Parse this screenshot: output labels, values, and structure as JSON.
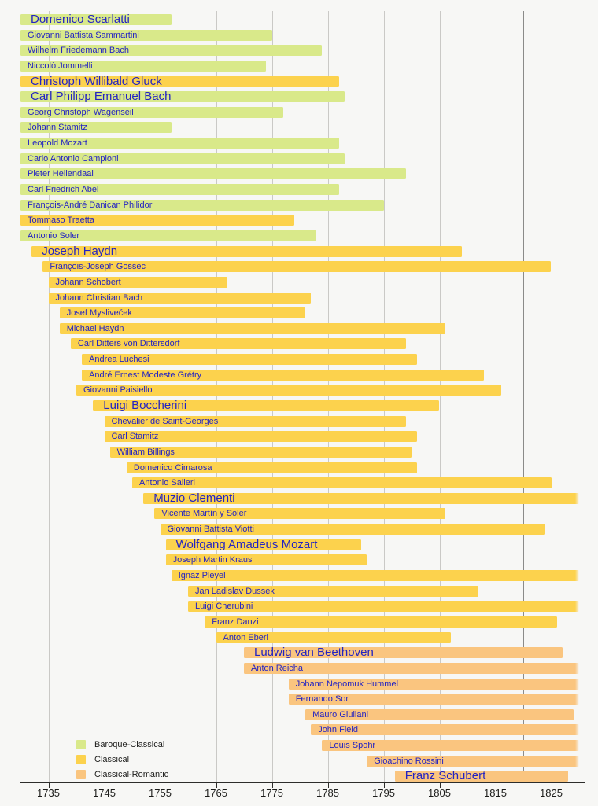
{
  "chart_data": {
    "type": "bar",
    "variant": "timeline-lifespans",
    "title": "",
    "x_axis": {
      "min": 1730,
      "max": 1830,
      "grid": true,
      "tick_years": [
        1735,
        1745,
        1755,
        1765,
        1775,
        1785,
        1795,
        1805,
        1815,
        1825
      ],
      "tick_labels": [
        "1735",
        "1745",
        "1755",
        "1765",
        "1775",
        "1785",
        "1795",
        "1805",
        "1815",
        "1825"
      ],
      "era_boundary_year": 1820
    },
    "legend": {
      "position": "bottom-left",
      "items": [
        {
          "label": "Baroque-Classical",
          "era": "baroque-classical",
          "color": "#d9e98a"
        },
        {
          "label": "Classical",
          "era": "classical",
          "color": "#fcd24d"
        },
        {
          "label": "Classical-Romantic",
          "era": "classical-romantic",
          "color": "#fac57f"
        }
      ]
    },
    "composers": [
      {
        "name": "Domenico Scarlatti",
        "start": 1730,
        "end": 1757,
        "era": "baroque-classical",
        "big": true
      },
      {
        "name": "Giovanni Battista Sammartini",
        "start": 1730,
        "end": 1775,
        "era": "baroque-classical",
        "big": false
      },
      {
        "name": "Wilhelm Friedemann Bach",
        "start": 1730,
        "end": 1784,
        "era": "baroque-classical",
        "big": false
      },
      {
        "name": "Niccolò Jommelli",
        "start": 1730,
        "end": 1774,
        "era": "baroque-classical",
        "big": false
      },
      {
        "name": "Christoph Willibald Gluck",
        "start": 1730,
        "end": 1787,
        "era": "classical",
        "big": true
      },
      {
        "name": "Carl Philipp Emanuel Bach",
        "start": 1730,
        "end": 1788,
        "era": "baroque-classical",
        "big": true
      },
      {
        "name": "Georg Christoph Wagenseil",
        "start": 1730,
        "end": 1777,
        "era": "baroque-classical",
        "big": false
      },
      {
        "name": "Johann Stamitz",
        "start": 1730,
        "end": 1757,
        "era": "baroque-classical",
        "big": false
      },
      {
        "name": "Leopold Mozart",
        "start": 1730,
        "end": 1787,
        "era": "baroque-classical",
        "big": false
      },
      {
        "name": "Carlo Antonio Campioni",
        "start": 1730,
        "end": 1788,
        "era": "baroque-classical",
        "big": false
      },
      {
        "name": "Pieter Hellendaal",
        "start": 1730,
        "end": 1799,
        "era": "baroque-classical",
        "big": false
      },
      {
        "name": "Carl Friedrich Abel",
        "start": 1730,
        "end": 1787,
        "era": "baroque-classical",
        "big": false
      },
      {
        "name": "François-André Danican Philidor",
        "start": 1730,
        "end": 1795,
        "era": "baroque-classical",
        "big": false
      },
      {
        "name": "Tommaso Traetta",
        "start": 1730,
        "end": 1779,
        "era": "classical",
        "big": false
      },
      {
        "name": "Antonio Soler",
        "start": 1730,
        "end": 1783,
        "era": "baroque-classical",
        "big": false
      },
      {
        "name": "Joseph Haydn",
        "start": 1732,
        "end": 1809,
        "era": "classical",
        "big": true
      },
      {
        "name": "François-Joseph Gossec",
        "start": 1734,
        "end": 1825,
        "era": "classical",
        "big": false
      },
      {
        "name": "Johann Schobert",
        "start": 1735,
        "end": 1767,
        "era": "classical",
        "big": false
      },
      {
        "name": "Johann Christian Bach",
        "start": 1735,
        "end": 1782,
        "era": "classical",
        "big": false
      },
      {
        "name": "Josef Mysliveček",
        "start": 1737,
        "end": 1781,
        "era": "classical",
        "big": false
      },
      {
        "name": "Michael Haydn",
        "start": 1737,
        "end": 1806,
        "era": "classical",
        "big": false
      },
      {
        "name": "Carl Ditters von Dittersdorf",
        "start": 1739,
        "end": 1799,
        "era": "classical",
        "big": false
      },
      {
        "name": "Andrea Luchesi",
        "start": 1741,
        "end": 1801,
        "era": "classical",
        "big": false
      },
      {
        "name": "André Ernest Modeste Grétry",
        "start": 1741,
        "end": 1813,
        "era": "classical",
        "big": false
      },
      {
        "name": "Giovanni Paisiello",
        "start": 1740,
        "end": 1816,
        "era": "classical",
        "big": false
      },
      {
        "name": "Luigi Boccherini",
        "start": 1743,
        "end": 1805,
        "era": "classical",
        "big": true
      },
      {
        "name": "Chevalier de Saint-Georges",
        "start": 1745,
        "end": 1799,
        "era": "classical",
        "big": false
      },
      {
        "name": "Carl Stamitz",
        "start": 1745,
        "end": 1801,
        "era": "classical",
        "big": false
      },
      {
        "name": "William Billings",
        "start": 1746,
        "end": 1800,
        "era": "classical",
        "big": false
      },
      {
        "name": "Domenico Cimarosa",
        "start": 1749,
        "end": 1801,
        "era": "classical",
        "big": false
      },
      {
        "name": "Antonio Salieri",
        "start": 1750,
        "end": 1825,
        "era": "classical",
        "big": false
      },
      {
        "name": "Muzio Clementi",
        "start": 1752,
        "end": 1830,
        "era": "classical",
        "big": true
      },
      {
        "name": "Vicente Martín y Soler",
        "start": 1754,
        "end": 1806,
        "era": "classical",
        "big": false
      },
      {
        "name": "Giovanni Battista Viotti",
        "start": 1755,
        "end": 1824,
        "era": "classical",
        "big": false
      },
      {
        "name": "Wolfgang Amadeus Mozart",
        "start": 1756,
        "end": 1791,
        "era": "classical",
        "big": true
      },
      {
        "name": "Joseph Martin Kraus",
        "start": 1756,
        "end": 1792,
        "era": "classical",
        "big": false
      },
      {
        "name": "Ignaz Pleyel",
        "start": 1757,
        "end": 1830,
        "era": "classical",
        "big": false
      },
      {
        "name": "Jan Ladislav Dussek",
        "start": 1760,
        "end": 1812,
        "era": "classical",
        "big": false
      },
      {
        "name": "Luigi Cherubini",
        "start": 1760,
        "end": 1830,
        "era": "classical",
        "big": false
      },
      {
        "name": "Franz Danzi",
        "start": 1763,
        "end": 1826,
        "era": "classical",
        "big": false
      },
      {
        "name": "Anton Eberl",
        "start": 1765,
        "end": 1807,
        "era": "classical",
        "big": false
      },
      {
        "name": "Ludwig van Beethoven",
        "start": 1770,
        "end": 1827,
        "era": "classical-romantic",
        "big": true
      },
      {
        "name": "Anton Reicha",
        "start": 1770,
        "end": 1830,
        "era": "classical-romantic",
        "big": false
      },
      {
        "name": "Johann Nepomuk Hummel",
        "start": 1778,
        "end": 1830,
        "era": "classical-romantic",
        "big": false
      },
      {
        "name": "Fernando Sor",
        "start": 1778,
        "end": 1830,
        "era": "classical-romantic",
        "big": false
      },
      {
        "name": "Mauro Giuliani",
        "start": 1781,
        "end": 1829,
        "era": "classical-romantic",
        "big": false
      },
      {
        "name": "John Field",
        "start": 1782,
        "end": 1830,
        "era": "classical-romantic",
        "big": false
      },
      {
        "name": "Louis Spohr",
        "start": 1784,
        "end": 1830,
        "era": "classical-romantic",
        "big": false
      },
      {
        "name": "Gioachino Rossini",
        "start": 1792,
        "end": 1830,
        "era": "classical-romantic",
        "big": false
      },
      {
        "name": "Franz Schubert",
        "start": 1797,
        "end": 1828,
        "era": "classical-romantic",
        "big": true
      }
    ]
  },
  "colors": {
    "background": "#f7f7f5",
    "baroque-classical": "#d9e98a",
    "classical": "#fcd24d",
    "classical-romantic": "#fac57f",
    "bar_label_text": "#2323c3",
    "gridline": "#cac9c6",
    "era_boundary_line": "#8b8b89",
    "axis": "#2d2d2b",
    "tick_label_text": "#1c1c1a"
  }
}
